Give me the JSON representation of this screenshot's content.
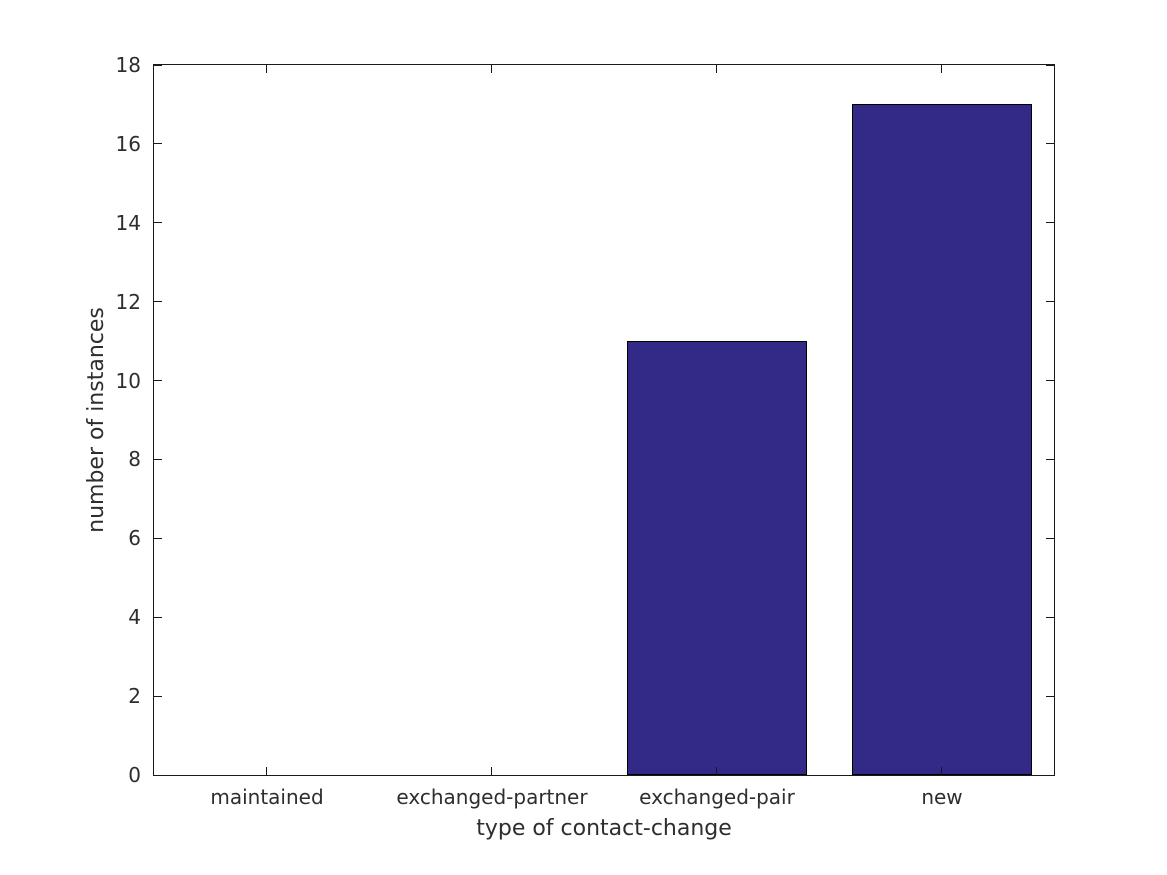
{
  "figure": {
    "background": "#ffffff"
  },
  "chart_data": {
    "type": "bar",
    "title": "",
    "xlabel": "type of contact-change",
    "ylabel": "number of instances",
    "categories": [
      "maintained",
      "exchanged-partner",
      "exchanged-pair",
      "new"
    ],
    "values": [
      0,
      0,
      11,
      17
    ],
    "y_ticks": [
      0,
      2,
      4,
      6,
      8,
      10,
      12,
      14,
      16,
      18
    ],
    "ylim": [
      0,
      18
    ],
    "grid": false,
    "legend": "none",
    "bar_color": "#332a87",
    "bar_edge_color": "#000000",
    "axis_color": "#1a1a1a",
    "text_color": "#2e2e2e",
    "bar_width_fraction": 0.8
  }
}
